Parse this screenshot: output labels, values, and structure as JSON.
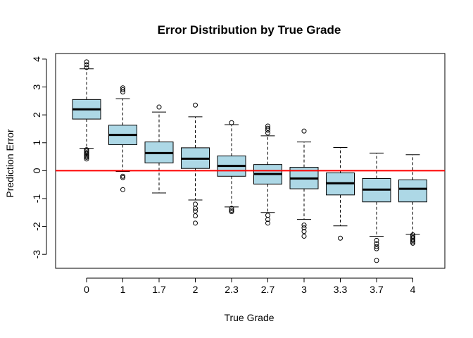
{
  "chart_data": {
    "type": "boxplot",
    "title": "Error Distribution by True Grade",
    "xlabel": "True Grade",
    "ylabel": "Prediction Error",
    "ylim": [
      -3.5,
      4.2
    ],
    "yticks": [
      -3,
      -2,
      -1,
      0,
      1,
      2,
      3,
      4
    ],
    "box_color": "#add8e6",
    "reference_line": {
      "y": 0,
      "color": "#ff0000"
    },
    "categories": [
      "0",
      "1",
      "1.7",
      "2",
      "2.3",
      "2.7",
      "3",
      "3.3",
      "3.7",
      "4"
    ],
    "boxes": [
      {
        "q1": 1.85,
        "median": 2.2,
        "q3": 2.55,
        "whisker_low": 0.8,
        "whisker_high": 3.65,
        "outliers": [
          0.42,
          0.48,
          0.52,
          0.56,
          0.6,
          0.65,
          0.7,
          0.75,
          3.7,
          3.8,
          3.9
        ]
      },
      {
        "q1": 0.93,
        "median": 1.28,
        "q3": 1.63,
        "whisker_low": -0.03,
        "whisker_high": 2.58,
        "outliers": [
          -0.2,
          -0.25,
          -0.68,
          2.82,
          2.9,
          2.97
        ]
      },
      {
        "q1": 0.28,
        "median": 0.63,
        "q3": 1.03,
        "whisker_low": -0.8,
        "whisker_high": 2.1,
        "outliers": [
          2.28
        ]
      },
      {
        "q1": 0.08,
        "median": 0.43,
        "q3": 0.82,
        "whisker_low": -1.05,
        "whisker_high": 1.93,
        "outliers": [
          -1.2,
          -1.35,
          -1.45,
          -1.62,
          -1.88,
          2.35
        ]
      },
      {
        "q1": -0.2,
        "median": 0.17,
        "q3": 0.53,
        "whisker_low": -1.3,
        "whisker_high": 1.65,
        "outliers": [
          -1.35,
          -1.42,
          -1.47,
          1.72
        ]
      },
      {
        "q1": -0.48,
        "median": -0.12,
        "q3": 0.22,
        "whisker_low": -1.5,
        "whisker_high": 1.25,
        "outliers": [
          -1.6,
          -1.75,
          -1.88,
          1.35,
          1.45,
          1.52,
          1.6
        ]
      },
      {
        "q1": -0.65,
        "median": -0.28,
        "q3": 0.12,
        "whisker_low": -1.75,
        "whisker_high": 1.03,
        "outliers": [
          -1.95,
          -2.05,
          -2.18,
          -2.35,
          1.42
        ]
      },
      {
        "q1": -0.87,
        "median": -0.45,
        "q3": -0.08,
        "whisker_low": -1.98,
        "whisker_high": 0.83,
        "outliers": [
          -2.42
        ]
      },
      {
        "q1": -1.12,
        "median": -0.68,
        "q3": -0.28,
        "whisker_low": -2.35,
        "whisker_high": 0.63,
        "outliers": [
          -2.5,
          -2.62,
          -2.72,
          -2.8,
          -3.22
        ]
      },
      {
        "q1": -1.12,
        "median": -0.65,
        "q3": -0.33,
        "whisker_low": -2.28,
        "whisker_high": 0.57,
        "outliers": [
          -2.3,
          -2.35,
          -2.4,
          -2.45,
          -2.5,
          -2.55,
          -2.6
        ]
      }
    ]
  }
}
